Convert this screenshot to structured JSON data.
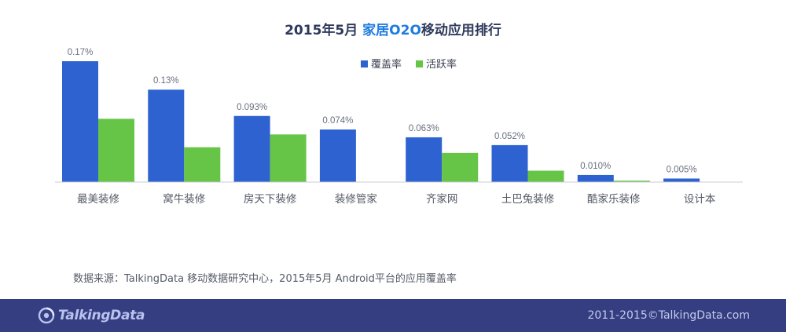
{
  "title": {
    "prefix": "2015年5月",
    "highlight": "家居O2O",
    "suffix": "移动应用排行"
  },
  "chart_data": {
    "type": "bar",
    "categories": [
      "最美装修",
      "窝牛装修",
      "房天下装修",
      "装修管家",
      "齐家网",
      "土巴兔装修",
      "酷家乐装修",
      "设计本"
    ],
    "series": [
      {
        "name": "覆盖率",
        "color": "#2d62d0",
        "values": [
          0.17,
          0.13,
          0.093,
          0.074,
          0.063,
          0.052,
          0.01,
          0.005
        ],
        "labels": [
          "0.17%",
          "0.13%",
          "0.093%",
          "0.074%",
          "0.063%",
          "0.052%",
          "0.010%",
          "0.005%"
        ]
      },
      {
        "name": "活跃率",
        "color": "#66c446",
        "values": [
          0.089,
          0.049,
          0.067,
          0,
          0.041,
          0.016,
          0.002,
          0
        ]
      }
    ],
    "ylim": [
      0,
      0.17
    ],
    "legend_position": "top-center",
    "grid": false
  },
  "source_text": "数据来源：TalkingData 移动数据研究中心，2015年5月 Android平台的应用覆盖率",
  "footer": {
    "logo": "TalkingData",
    "copyright": "2011-2015©TalkingData.com"
  },
  "colors": {
    "footer_bg": "#353e80",
    "coverage": "#2d62d0",
    "active": "#66c446",
    "title_accent": "#1e7be0"
  }
}
